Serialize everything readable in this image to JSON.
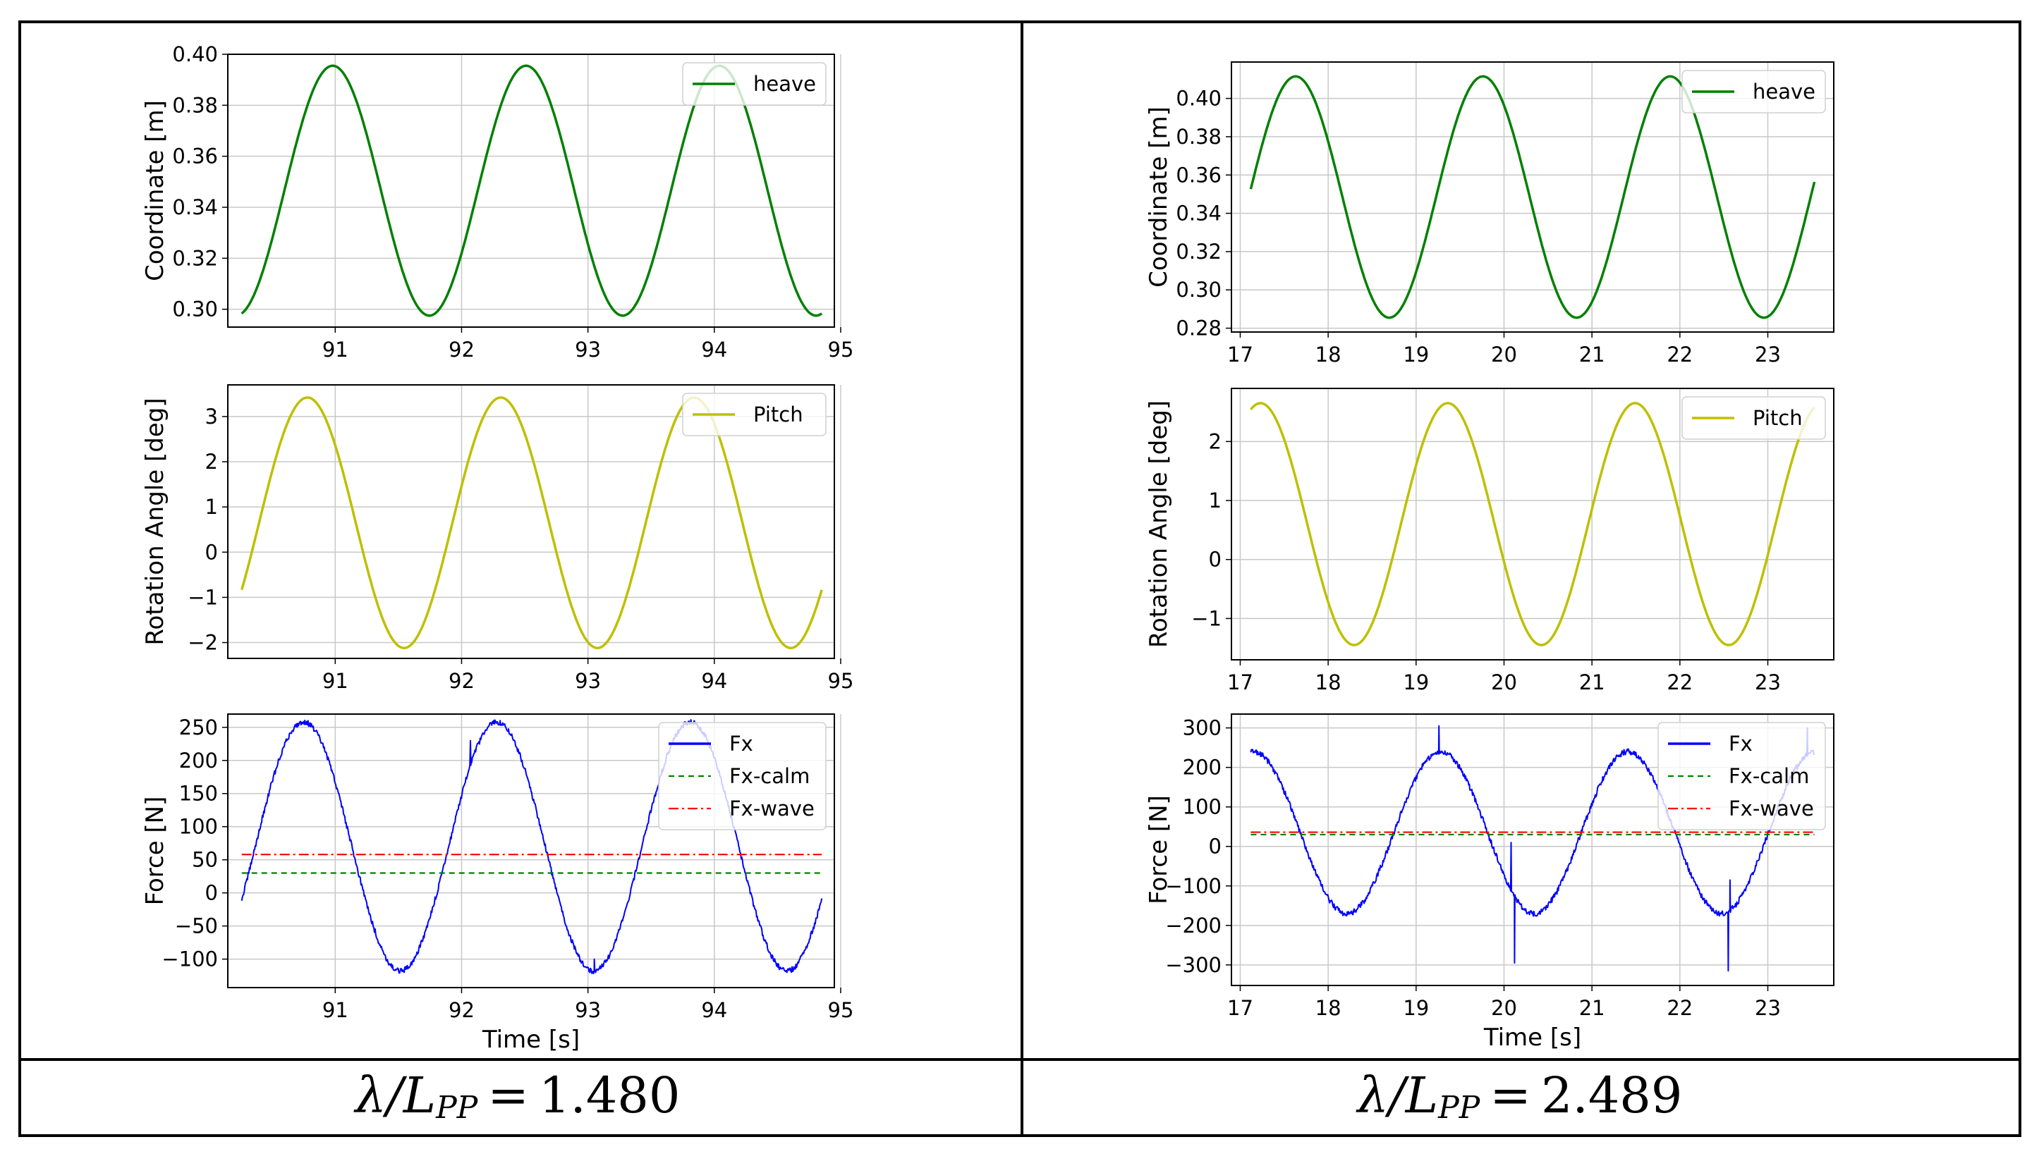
{
  "colors": {
    "heave": "#008000",
    "pitch": "#bfbf00",
    "fx": "#0000ff",
    "fx_calm": "#008000",
    "fx_wave": "#ff0000",
    "grid": "#c8c8c8",
    "frame": "#000000"
  },
  "captions": [
    {
      "symbol": "λ/L",
      "subscript": "PP",
      "equals": "=",
      "value": "1.480"
    },
    {
      "symbol": "λ/L",
      "subscript": "PP",
      "equals": "=",
      "value": "2.489"
    }
  ],
  "chart_data": [
    {
      "type": "line",
      "column": 0,
      "row": 0,
      "title": "",
      "xlabel": "",
      "ylabel": "Coordinate [m]",
      "xlim": [
        90.15,
        94.95
      ],
      "ylim": [
        0.293,
        0.4
      ],
      "xticks": [
        91,
        92,
        93,
        94,
        95
      ],
      "yticks": [
        0.3,
        0.32,
        0.34,
        0.36,
        0.38,
        0.4
      ],
      "ytick_labels": [
        "0.30",
        "0.32",
        "0.34",
        "0.36",
        "0.38",
        "0.40"
      ],
      "legend": "top-right",
      "series": [
        {
          "name": "heave",
          "kind": "sine",
          "color_key": "heave",
          "x_start": 90.26,
          "x_end": 94.85,
          "mean": 0.3465,
          "amplitude": 0.049,
          "period": 1.53,
          "peak_x": 90.98,
          "noise": 0,
          "dashed": ""
        }
      ]
    },
    {
      "type": "line",
      "column": 0,
      "row": 1,
      "title": "",
      "xlabel": "",
      "ylabel": "Rotation Angle [deg]",
      "xlim": [
        90.15,
        94.95
      ],
      "ylim": [
        -2.35,
        3.7
      ],
      "xticks": [
        91,
        92,
        93,
        94,
        95
      ],
      "yticks": [
        -2,
        -1,
        0,
        1,
        2,
        3
      ],
      "ytick_labels": [
        "−2",
        "−1",
        "0",
        "1",
        "2",
        "3"
      ],
      "legend": "top-right",
      "series": [
        {
          "name": "Pitch",
          "kind": "sine",
          "color_key": "pitch",
          "x_start": 90.26,
          "x_end": 94.85,
          "mean": 0.65,
          "amplitude": 2.77,
          "period": 1.53,
          "peak_x": 90.78,
          "noise": 0,
          "dashed": ""
        }
      ]
    },
    {
      "type": "line",
      "column": 0,
      "row": 2,
      "title": "",
      "xlabel": "Time [s]",
      "ylabel": "Force [N]",
      "xlim": [
        90.15,
        94.95
      ],
      "ylim": [
        -143,
        270
      ],
      "xticks": [
        91,
        92,
        93,
        94,
        95
      ],
      "yticks": [
        -100,
        -50,
        0,
        50,
        100,
        150,
        200,
        250
      ],
      "ytick_labels": [
        "−100",
        "−50",
        "0",
        "50",
        "100",
        "150",
        "200",
        "250"
      ],
      "legend": "top-right",
      "series": [
        {
          "name": "Fx",
          "kind": "sine",
          "color_key": "fx",
          "x_start": 90.26,
          "x_end": 94.85,
          "mean": 70,
          "amplitude": 188,
          "period": 1.53,
          "peak_x": 90.75,
          "noise": 4,
          "dashed": "",
          "spikes": [
            [
              92.07,
              230
            ],
            [
              93.05,
              -100
            ],
            [
              94.5,
              -110
            ]
          ]
        },
        {
          "name": "Fx-calm",
          "kind": "const",
          "color_key": "fx_calm",
          "x_start": 90.26,
          "x_end": 94.85,
          "value": 30,
          "dashed": "8,6"
        },
        {
          "name": "Fx-wave",
          "kind": "const",
          "color_key": "fx_wave",
          "x_start": 90.26,
          "x_end": 94.85,
          "value": 58,
          "dashed": "14,5,3,5"
        }
      ]
    },
    {
      "type": "line",
      "column": 1,
      "row": 0,
      "title": "",
      "xlabel": "",
      "ylabel": "Coordinate [m]",
      "xlim": [
        16.9,
        23.75
      ],
      "ylim": [
        0.278,
        0.419
      ],
      "xticks": [
        17,
        18,
        19,
        20,
        21,
        22,
        23
      ],
      "yticks": [
        0.28,
        0.3,
        0.32,
        0.34,
        0.36,
        0.38,
        0.4
      ],
      "ytick_labels": [
        "0.28",
        "0.30",
        "0.32",
        "0.34",
        "0.36",
        "0.38",
        "0.40"
      ],
      "legend": "top-right",
      "series": [
        {
          "name": "heave",
          "kind": "sine",
          "color_key": "heave",
          "x_start": 17.12,
          "x_end": 23.53,
          "mean": 0.3485,
          "amplitude": 0.063,
          "period": 2.13,
          "peak_x": 17.63,
          "noise": 0,
          "dashed": ""
        }
      ]
    },
    {
      "type": "line",
      "column": 1,
      "row": 1,
      "title": "",
      "xlabel": "",
      "ylabel": "Rotation Angle [deg]",
      "xlim": [
        16.9,
        23.75
      ],
      "ylim": [
        -1.7,
        2.9
      ],
      "xticks": [
        17,
        18,
        19,
        20,
        21,
        22,
        23
      ],
      "yticks": [
        -1,
        0,
        1,
        2
      ],
      "ytick_labels": [
        "−1",
        "0",
        "1",
        "2"
      ],
      "legend": "top-right",
      "series": [
        {
          "name": "Pitch",
          "kind": "sine",
          "color_key": "pitch",
          "x_start": 17.12,
          "x_end": 23.53,
          "mean": 0.6,
          "amplitude": 2.05,
          "period": 2.13,
          "peak_x": 17.23,
          "noise": 0,
          "dashed": ""
        }
      ]
    },
    {
      "type": "line",
      "column": 1,
      "row": 2,
      "title": "",
      "xlabel": "Time [s]",
      "ylabel": "Force [N]",
      "xlim": [
        16.9,
        23.75
      ],
      "ylim": [
        -352,
        335
      ],
      "xticks": [
        17,
        18,
        19,
        20,
        21,
        22,
        23
      ],
      "yticks": [
        -300,
        -200,
        -100,
        0,
        100,
        200,
        300
      ],
      "ytick_labels": [
        "−300",
        "−200",
        "−100",
        "0",
        "100",
        "200",
        "300"
      ],
      "legend": "top-right",
      "series": [
        {
          "name": "Fx",
          "kind": "sine",
          "color_key": "fx",
          "x_start": 17.12,
          "x_end": 23.53,
          "mean": 35,
          "amplitude": 205,
          "period": 2.13,
          "peak_x": 17.15,
          "noise": 7,
          "dashed": "",
          "spikes": [
            [
              19.26,
              305
            ],
            [
              20.08,
              10
            ],
            [
              20.12,
              -295
            ],
            [
              22.55,
              -315
            ],
            [
              22.57,
              -85
            ],
            [
              23.45,
              300
            ]
          ]
        },
        {
          "name": "Fx-calm",
          "kind": "const",
          "color_key": "fx_calm",
          "x_start": 17.12,
          "x_end": 23.53,
          "value": 30,
          "dashed": "8,6"
        },
        {
          "name": "Fx-wave",
          "kind": "const",
          "color_key": "fx_wave",
          "x_start": 17.12,
          "x_end": 23.53,
          "value": 36,
          "dashed": "14,5,3,5"
        }
      ]
    }
  ]
}
